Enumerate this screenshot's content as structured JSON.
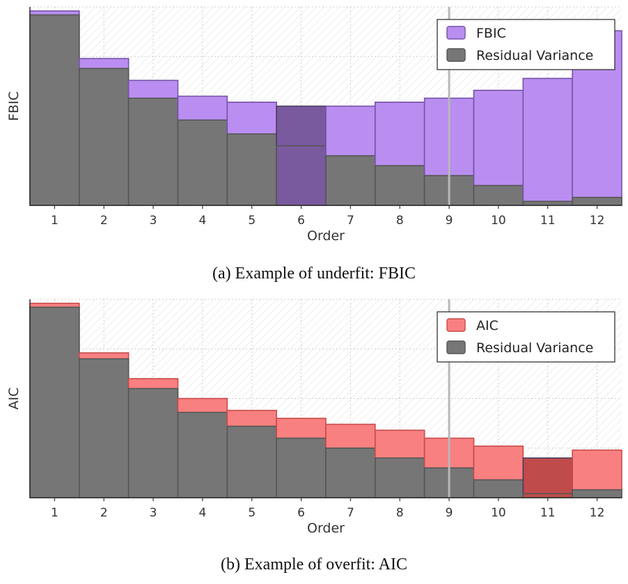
{
  "chart_data": [
    {
      "type": "bar",
      "categories": [
        "1",
        "2",
        "3",
        "4",
        "5",
        "6",
        "7",
        "8",
        "9",
        "10",
        "11",
        "12"
      ],
      "xlabel": "Order",
      "ylabel": "FBIC",
      "ylim": [
        0,
        1
      ],
      "vline_at": "9",
      "highlight_category": "6",
      "legend_position": "top-right",
      "series": [
        {
          "name": "FBIC",
          "color": "#b98ef0",
          "highlight_color": "#7a5a9e",
          "values": [
            0.98,
            0.74,
            0.63,
            0.55,
            0.52,
            0.5,
            0.5,
            0.52,
            0.54,
            0.58,
            0.64,
            0.88
          ]
        },
        {
          "name": "Residual Variance",
          "color": "#767676",
          "values": [
            0.96,
            0.69,
            0.54,
            0.43,
            0.36,
            0.3,
            0.25,
            0.2,
            0.15,
            0.1,
            0.02,
            0.04
          ]
        }
      ],
      "caption": "(a) Example of underfit: FBIC"
    },
    {
      "type": "bar",
      "categories": [
        "1",
        "2",
        "3",
        "4",
        "5",
        "6",
        "7",
        "8",
        "9",
        "10",
        "11",
        "12"
      ],
      "xlabel": "Order",
      "ylabel": "AIC",
      "ylim": [
        0,
        1
      ],
      "vline_at": "9",
      "highlight_category": "11",
      "legend_position": "top-right",
      "series": [
        {
          "name": "AIC",
          "color": "#f98080",
          "highlight_color": "#bf4b4b",
          "values": [
            0.98,
            0.73,
            0.6,
            0.5,
            0.44,
            0.4,
            0.37,
            0.34,
            0.3,
            0.26,
            0.2,
            0.24
          ]
        },
        {
          "name": "Residual Variance",
          "color": "#767676",
          "values": [
            0.96,
            0.7,
            0.55,
            0.43,
            0.36,
            0.3,
            0.25,
            0.2,
            0.15,
            0.09,
            0.02,
            0.04
          ]
        }
      ],
      "caption": "(b) Example of overfit: AIC"
    }
  ]
}
